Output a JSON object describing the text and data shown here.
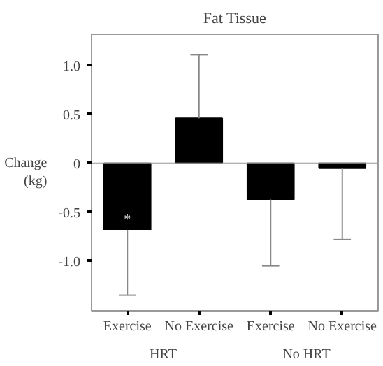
{
  "chart_data": {
    "type": "bar",
    "title": "Fat Tissue",
    "ylabel": "Change (kg)",
    "categories": [
      "Exercise",
      "No Exercise",
      "Exercise",
      "No Exercise"
    ],
    "values": [
      -0.68,
      0.46,
      -0.37,
      -0.05
    ],
    "color": "#000000",
    "errors": [
      [
        -1.35,
        -0.68
      ],
      [
        0.46,
        1.11
      ],
      [
        -1.05,
        -0.37
      ],
      [
        -0.78,
        -0.05
      ]
    ],
    "ylim": [
      -1.51,
      1.32
    ],
    "yticks": [
      {
        "value": 1.0,
        "label": "1.0"
      },
      {
        "value": 0.5,
        "label": "0.5"
      },
      0,
      {
        "value": -0.5,
        "label": "-0.5"
      },
      {
        "value": -1.0,
        "label": "-1.0"
      }
    ],
    "annotations": [
      "*",
      "HRT",
      "No HRT"
    ],
    "ref_lines": [
      {
        "axis": "y",
        "value": 0
      }
    ]
  }
}
